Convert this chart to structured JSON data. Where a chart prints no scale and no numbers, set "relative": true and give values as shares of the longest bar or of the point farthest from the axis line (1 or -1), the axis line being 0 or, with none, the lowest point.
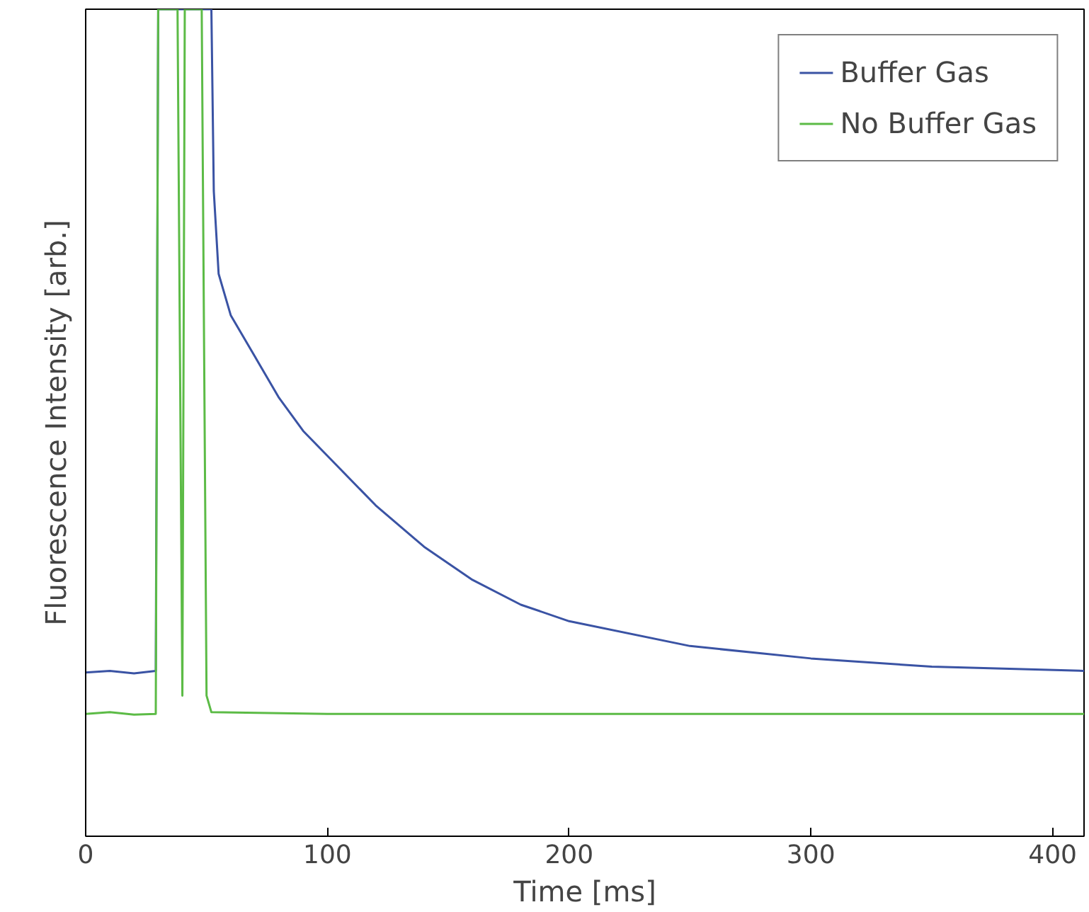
{
  "chart_data": {
    "type": "line",
    "relative": true,
    "xlabel": "Time [ms]",
    "ylabel": "Fluorescence Intensity [arb.]",
    "xlim": [
      0,
      413
    ],
    "xticks": [
      0,
      100,
      200,
      300,
      400
    ],
    "grid": false,
    "legend": "top right",
    "line_style": "solid",
    "marker": "none",
    "series": [
      {
        "name": "Buffer Gas",
        "color": "#3a53a4",
        "x": [
          0,
          10,
          20,
          29,
          30,
          40,
          50,
          52,
          53,
          55,
          60,
          70,
          80,
          90,
          100,
          120,
          140,
          160,
          180,
          200,
          250,
          300,
          350,
          413
        ],
        "values": [
          0.198,
          0.2,
          0.197,
          0.2,
          1,
          1,
          1,
          1,
          0.78,
          0.68,
          0.63,
          0.58,
          0.53,
          0.49,
          0.46,
          0.4,
          0.35,
          0.31,
          0.28,
          0.26,
          0.23,
          0.215,
          0.205,
          0.2
        ]
      },
      {
        "name": "No Buffer Gas",
        "color": "#5cbb46",
        "x": [
          0,
          10,
          20,
          29,
          30,
          38,
          40,
          41,
          48,
          50,
          52,
          100,
          200,
          300,
          413
        ],
        "values": [
          0.148,
          0.15,
          0.147,
          0.148,
          1,
          1,
          0.17,
          1,
          1,
          0.17,
          0.15,
          0.148,
          0.148,
          0.148,
          0.148
        ]
      }
    ]
  }
}
